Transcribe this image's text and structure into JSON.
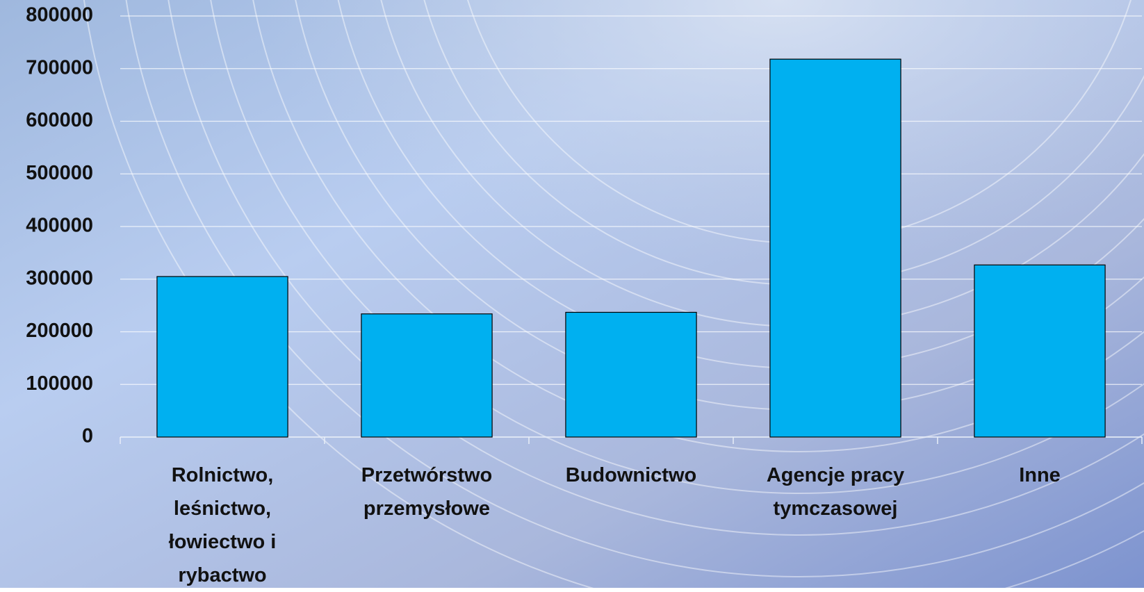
{
  "chart_data": {
    "type": "bar",
    "categories": [
      "Rolnictwo, leśnictwo, łowiectwo i rybactwo",
      "Przetwórstwo przemysłowe",
      "Budownictwo",
      "Agencje pracy tymczasowej",
      "Inne"
    ],
    "values": [
      305000,
      234000,
      237000,
      718000,
      327000
    ],
    "color": "#00b0f0",
    "ylim": [
      0,
      800000
    ],
    "yticks": [
      0,
      100000,
      200000,
      300000,
      400000,
      500000,
      600000,
      700000,
      800000
    ],
    "grid": true
  }
}
